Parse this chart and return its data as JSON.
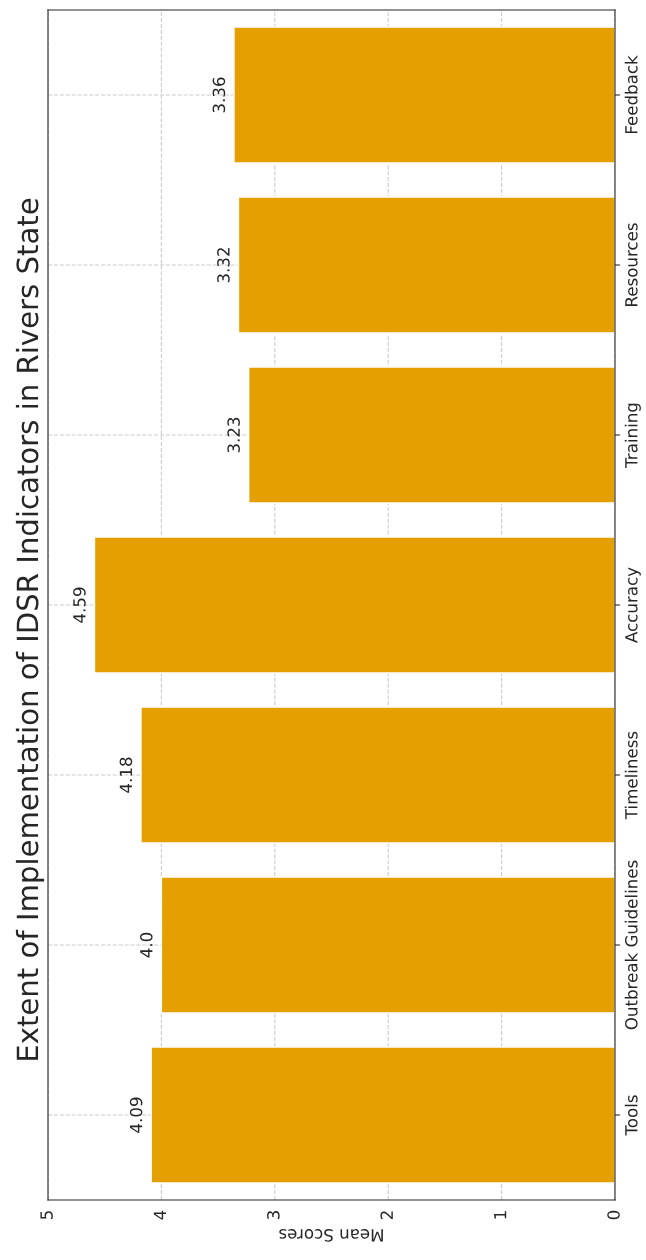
{
  "chart_data": {
    "type": "bar",
    "orientation": "horizontal",
    "title": "Extent of Implementation of IDSR Indicators in Rivers State",
    "xlabel": "Mean Scores",
    "categories": [
      "Feedback",
      "Resources",
      "Training",
      "Accuracy",
      "Timeliness",
      "Outbreak Guidelines",
      "Tools"
    ],
    "values": [
      3.36,
      3.32,
      3.23,
      4.59,
      4.18,
      4.0,
      4.09
    ],
    "value_labels": [
      "3.36",
      "3.32",
      "3.23",
      "4.59",
      "4.18",
      "4.0",
      "4.09"
    ],
    "color": "#e49f00",
    "xlim": [
      5,
      0
    ],
    "xticks": [
      0,
      1,
      2,
      3,
      4,
      5
    ],
    "grid": true,
    "legend": false
  }
}
